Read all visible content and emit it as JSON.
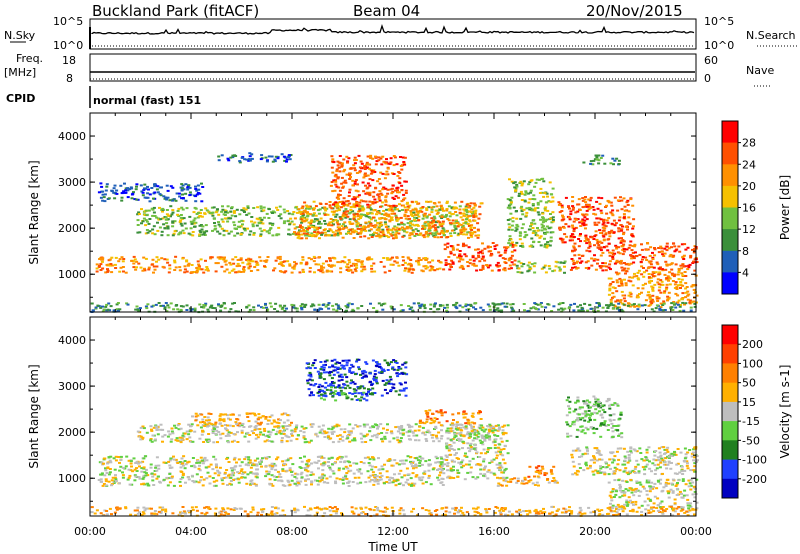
{
  "header": {
    "station": "Buckland Park (fitACF)",
    "beam": "Beam 04",
    "date": "20/Nov/2015"
  },
  "params": {
    "nsky_label": "N.Sky",
    "nsky_top": "10^5",
    "nsky_bottom": "10^0",
    "nsearch_label": "N.Search",
    "nsearch_top": "10^5",
    "nsearch_bottom": "10^0",
    "freq_label": "Freq.",
    "freq_unit": "[MHz]",
    "freq_top": "18",
    "freq_bottom": "8",
    "nave_label": "Nave",
    "nave_top": "60",
    "nave_bottom": "0",
    "cpid_label": "CPID",
    "cpid_value": "normal (fast) 151"
  },
  "chart_data": [
    {
      "type": "heatmap",
      "panel": "power",
      "xlabel": "",
      "ylabel": "Slant Range [km]",
      "xlim_hours": [
        0,
        24
      ],
      "ylim": [
        180,
        4500
      ],
      "y_ticks": [
        "1000",
        "2000",
        "3000",
        "4000"
      ],
      "colorbar": {
        "label": "Power [dB]",
        "ticks": [
          "4",
          "8",
          "12",
          "16",
          "20",
          "24",
          "28"
        ],
        "colors": [
          "#0000ff",
          "#1f5fb8",
          "#3a8f3a",
          "#70c040",
          "#f5c000",
          "#ff9000",
          "#ff5000",
          "#ff0000"
        ]
      },
      "bands": [
        {
          "t0": 0.2,
          "t1": 14.0,
          "r0": 1050,
          "r1": 1400,
          "level": 5
        },
        {
          "t0": 14.0,
          "t1": 16.8,
          "r0": 1100,
          "r1": 1700,
          "level": 6
        },
        {
          "t0": 16.8,
          "t1": 18.8,
          "r0": 1050,
          "r1": 1300,
          "level": 3
        },
        {
          "t0": 1.8,
          "t1": 15.2,
          "r0": 1850,
          "r1": 2500,
          "level": 3
        },
        {
          "t0": 8.0,
          "t1": 15.5,
          "r0": 1800,
          "r1": 2600,
          "level": 5
        },
        {
          "t0": 9.5,
          "t1": 12.5,
          "r0": 2500,
          "r1": 3600,
          "level": 6
        },
        {
          "t0": 0.3,
          "t1": 4.5,
          "r0": 2600,
          "r1": 3000,
          "level": 1
        },
        {
          "t0": 5.0,
          "t1": 8.0,
          "r0": 3450,
          "r1": 3650,
          "level": 1
        },
        {
          "t0": 16.5,
          "t1": 18.3,
          "r0": 1600,
          "r1": 3100,
          "level": 3
        },
        {
          "t0": 19.0,
          "t1": 24.0,
          "r0": 1100,
          "r1": 1700,
          "level": 6
        },
        {
          "t0": 18.5,
          "t1": 21.5,
          "r0": 1700,
          "r1": 2700,
          "level": 6
        },
        {
          "t0": 20.5,
          "t1": 24.0,
          "r0": 300,
          "r1": 1100,
          "level": 5
        },
        {
          "t0": 19.5,
          "t1": 21.0,
          "r0": 3400,
          "r1": 3600,
          "level": 2
        },
        {
          "t0": 0.0,
          "t1": 24.0,
          "r0": 200,
          "r1": 400,
          "level": 2
        }
      ]
    },
    {
      "type": "heatmap",
      "panel": "velocity",
      "xlabel": "Time UT",
      "ylabel": "Slant Range [km]",
      "xlim_hours": [
        0,
        24
      ],
      "ylim": [
        180,
        4500
      ],
      "x_ticks": [
        "00:00",
        "04:00",
        "08:00",
        "12:00",
        "16:00",
        "20:00",
        "00:00"
      ],
      "y_ticks": [
        "1000",
        "2000",
        "3000",
        "4000"
      ],
      "colorbar": {
        "label": "Velocity [m s-1]",
        "ticks": [
          "200",
          "100",
          "50",
          "15",
          "-15",
          "-50",
          "-100",
          "-200"
        ],
        "colors": [
          "#0000c0",
          "#2040ff",
          "#208020",
          "#60d040",
          "#bebebe",
          "#ffb000",
          "#ff8000",
          "#ff4000",
          "#ff0000"
        ]
      },
      "bands": [
        {
          "t0": 0.3,
          "t1": 14.0,
          "r0": 850,
          "r1": 1500,
          "level": 4
        },
        {
          "t0": 14.0,
          "t1": 16.5,
          "r0": 1000,
          "r1": 2200,
          "level": 4
        },
        {
          "t0": 16.0,
          "t1": 18.5,
          "r0": 850,
          "r1": 1050,
          "level": 5
        },
        {
          "t0": 17.3,
          "t1": 18.5,
          "r0": 1050,
          "r1": 1300,
          "level": 6
        },
        {
          "t0": 1.8,
          "t1": 16.0,
          "r0": 1800,
          "r1": 2200,
          "level": 4
        },
        {
          "t0": 4.0,
          "t1": 8.0,
          "r0": 2150,
          "r1": 2450,
          "level": 5
        },
        {
          "t0": 13.0,
          "t1": 15.5,
          "r0": 2200,
          "r1": 2500,
          "level": 6
        },
        {
          "t0": 8.5,
          "t1": 12.5,
          "r0": 2800,
          "r1": 3600,
          "level": 1
        },
        {
          "t0": 9.0,
          "t1": 11.0,
          "r0": 2700,
          "r1": 3000,
          "level": 2
        },
        {
          "t0": 18.8,
          "t1": 21.0,
          "r0": 1900,
          "r1": 2800,
          "level": 3
        },
        {
          "t0": 19.0,
          "t1": 24.0,
          "r0": 1100,
          "r1": 1700,
          "level": 4
        },
        {
          "t0": 20.5,
          "t1": 24.0,
          "r0": 350,
          "r1": 1000,
          "level": 4
        },
        {
          "t0": 0.0,
          "t1": 24.0,
          "r0": 200,
          "r1": 400,
          "level": 5
        }
      ]
    }
  ]
}
